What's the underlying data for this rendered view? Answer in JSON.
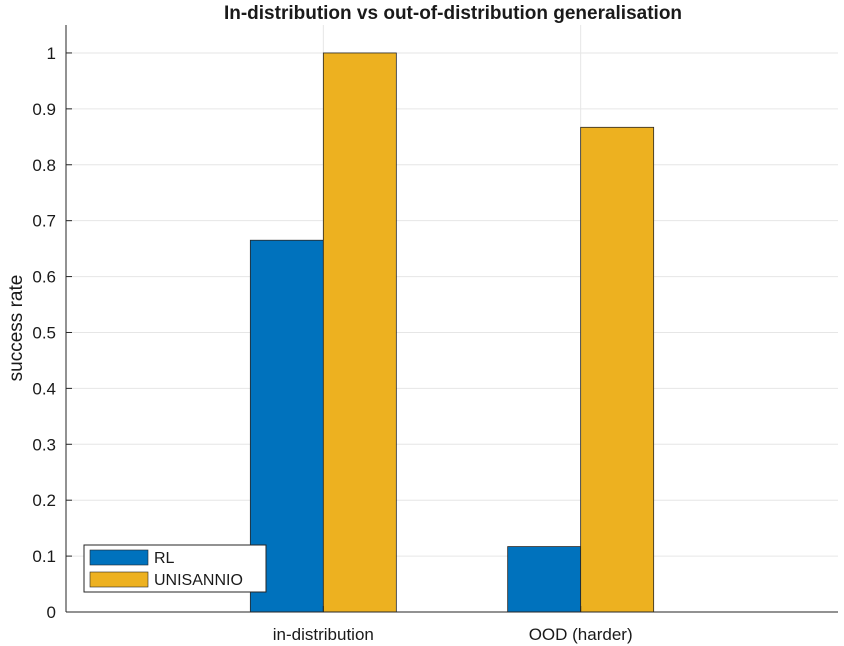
{
  "chart_data": {
    "type": "bar",
    "title": "In-distribution vs out-of-distribution generalisation",
    "xlabel": "",
    "ylabel": "success rate",
    "categories": [
      "in-distribution",
      "OOD (harder)"
    ],
    "series": [
      {
        "name": "RL",
        "color": "#0072BD",
        "values": [
          0.665,
          0.117
        ]
      },
      {
        "name": "UNISANNIO",
        "color": "#EDB120",
        "values": [
          1.0,
          0.867
        ]
      }
    ],
    "ylim": [
      0,
      1.05
    ],
    "yticks": [
      0,
      0.1,
      0.2,
      0.3,
      0.4,
      0.5,
      0.6,
      0.7,
      0.8,
      0.9,
      1
    ],
    "ytick_labels": [
      "0",
      "0.1",
      "0.2",
      "0.3",
      "0.4",
      "0.5",
      "0.6",
      "0.7",
      "0.8",
      "0.9",
      "1"
    ],
    "grid": true,
    "legend_position": "bottom-left"
  }
}
